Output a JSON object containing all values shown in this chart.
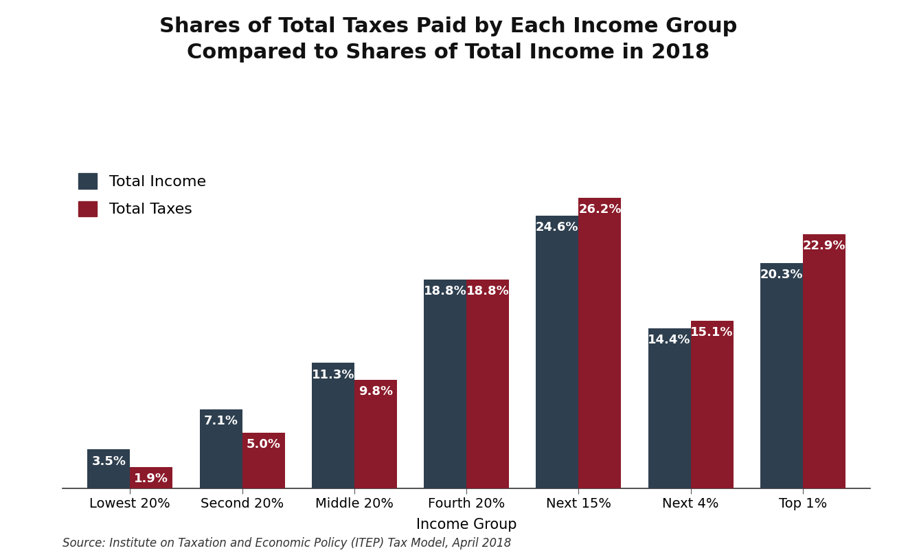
{
  "title_line1": "Shares of Total Taxes Paid by Each Income Group",
  "title_line2": "Compared to Shares of Total Income in 2018",
  "categories": [
    "Lowest 20%",
    "Second 20%",
    "Middle 20%",
    "Fourth 20%",
    "Next 15%",
    "Next 4%",
    "Top 1%"
  ],
  "total_income": [
    3.5,
    7.1,
    11.3,
    18.8,
    24.6,
    14.4,
    20.3
  ],
  "total_taxes": [
    1.9,
    5.0,
    9.8,
    18.8,
    26.2,
    15.1,
    22.9
  ],
  "income_color": "#2e3f4f",
  "taxes_color": "#8b1a2a",
  "xlabel": "Income Group",
  "ylim": [
    0,
    30
  ],
  "legend_income": "Total Income",
  "legend_taxes": "Total Taxes",
  "source_text": "Source: Institute on Taxation and Economic Policy (ITEP) Tax Model, April 2018",
  "title_fontsize": 22,
  "axis_label_fontsize": 15,
  "tick_fontsize": 14,
  "bar_label_fontsize": 13,
  "legend_fontsize": 16,
  "source_fontsize": 12,
  "bar_width": 0.38,
  "background_color": "#ffffff"
}
